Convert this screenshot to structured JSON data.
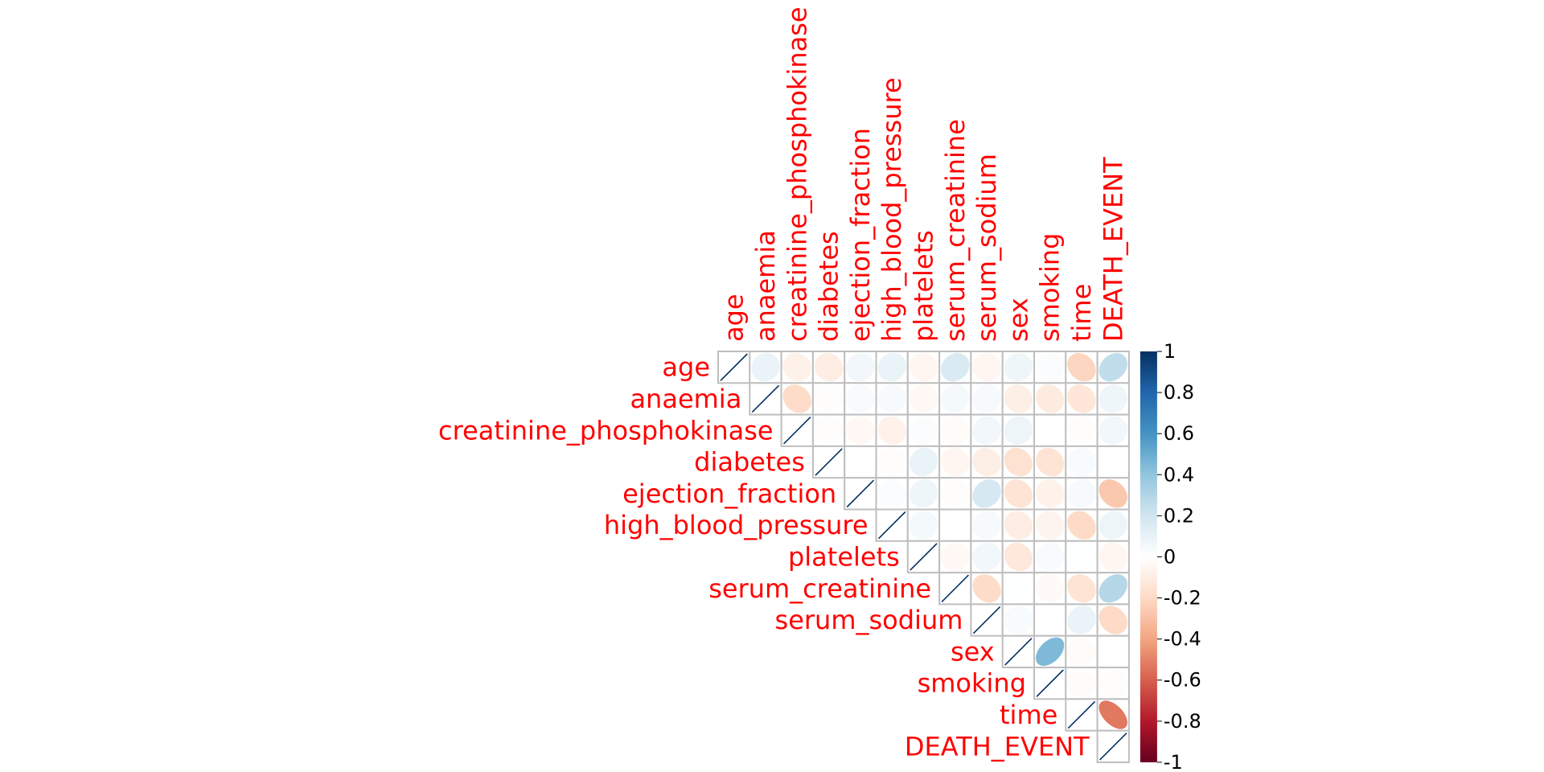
{
  "chart_data": {
    "type": "heatmap",
    "subtype": "correlation-ellipse-upper",
    "title": "",
    "variables": [
      "age",
      "anaemia",
      "creatinine_phosphokinase",
      "diabetes",
      "ejection_fraction",
      "high_blood_pressure",
      "platelets",
      "serum_creatinine",
      "serum_sodium",
      "sex",
      "smoking",
      "time",
      "DEATH_EVENT"
    ],
    "matrix": [
      [
        1,
        0.09,
        -0.08,
        -0.1,
        0.06,
        0.09,
        -0.05,
        0.16,
        -0.05,
        0.07,
        0.02,
        -0.22,
        0.25
      ],
      [
        0.09,
        1,
        -0.19,
        -0.01,
        0.03,
        0.04,
        -0.04,
        0.05,
        0.04,
        -0.09,
        -0.11,
        -0.14,
        0.07
      ],
      [
        -0.08,
        -0.19,
        1,
        -0.01,
        -0.04,
        -0.07,
        0.02,
        -0.02,
        0.06,
        0.08,
        0.0,
        -0.01,
        0.06
      ],
      [
        -0.1,
        -0.01,
        -0.01,
        1,
        -0.0,
        -0.01,
        0.09,
        -0.05,
        -0.09,
        -0.16,
        -0.15,
        0.03,
        -0.0
      ],
      [
        0.06,
        0.03,
        -0.04,
        -0.0,
        1,
        0.02,
        0.07,
        -0.01,
        0.18,
        -0.15,
        -0.07,
        0.04,
        -0.27
      ],
      [
        0.09,
        0.04,
        -0.07,
        -0.01,
        0.02,
        1,
        0.05,
        -0.0,
        0.04,
        -0.1,
        -0.06,
        -0.2,
        0.08
      ],
      [
        -0.05,
        -0.04,
        0.02,
        0.09,
        0.07,
        0.05,
        1,
        -0.04,
        0.06,
        -0.13,
        0.03,
        0.01,
        -0.05
      ],
      [
        0.16,
        0.05,
        -0.02,
        -0.05,
        -0.01,
        -0.0,
        -0.04,
        1,
        -0.19,
        0.01,
        -0.03,
        -0.15,
        0.29
      ],
      [
        -0.05,
        0.04,
        0.06,
        -0.09,
        0.18,
        0.04,
        0.06,
        -0.19,
        1,
        0.03,
        0.0,
        0.09,
        -0.2
      ],
      [
        0.07,
        -0.09,
        0.08,
        -0.16,
        -0.15,
        -0.1,
        -0.13,
        0.01,
        0.03,
        1,
        0.45,
        -0.02,
        -0.0
      ],
      [
        0.02,
        -0.11,
        0.0,
        -0.15,
        -0.07,
        -0.06,
        0.03,
        -0.03,
        0.0,
        0.45,
        1,
        -0.02,
        -0.01
      ],
      [
        -0.22,
        -0.14,
        -0.01,
        0.03,
        0.04,
        -0.2,
        0.01,
        -0.15,
        0.09,
        -0.02,
        -0.02,
        1,
        -0.53
      ],
      [
        0.25,
        0.07,
        0.06,
        -0.0,
        -0.27,
        0.08,
        -0.05,
        0.29,
        -0.2,
        -0.0,
        -0.01,
        -0.53,
        1
      ]
    ],
    "colorbar": {
      "min": -1,
      "max": 1,
      "ticks": [
        "1",
        "0.8",
        "0.6",
        "0.4",
        "0.2",
        "0",
        "-0.2",
        "-0.4",
        "-0.6",
        "-0.8",
        "-1"
      ],
      "gradient_stops": [
        "#67001F",
        "#B2182B",
        "#D6604D",
        "#F4A582",
        "#FDDBC7",
        "#FFFFFF",
        "#D1E5F0",
        "#92C5DE",
        "#4393C3",
        "#2166AC",
        "#053061"
      ]
    },
    "label_color": "#FF0000",
    "grid_color": "#BEBEBE",
    "diagonal_color": "#053061"
  }
}
